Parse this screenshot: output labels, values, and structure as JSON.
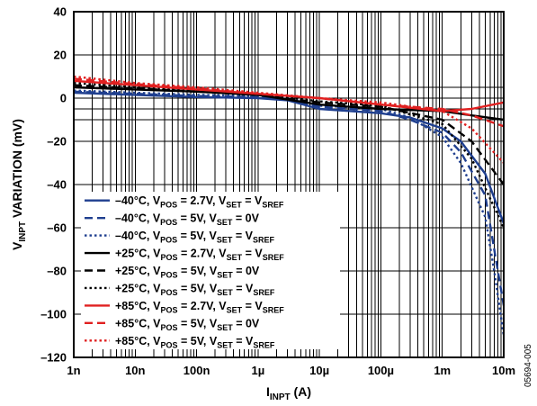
{
  "chart_data": {
    "type": "line",
    "title": "",
    "xlabel": {
      "main": "I",
      "sub": "INPT",
      "suffix": " (A)"
    },
    "ylabel": {
      "main": "V",
      "sub": "INPT",
      "suffix": " VARIATION (mV)"
    },
    "x_scale": "log",
    "xlim": [
      1e-09,
      0.01
    ],
    "ylim": [
      -120,
      40
    ],
    "x_tick_values": [
      1e-09,
      1e-08,
      1e-07,
      1e-06,
      1e-05,
      0.0001,
      0.001,
      0.01
    ],
    "x_tick_labels": [
      "1n",
      "10n",
      "100n",
      "1µ",
      "10µ",
      "100µ",
      "1m",
      "10m"
    ],
    "y_tick_values": [
      40,
      20,
      0,
      -20,
      -40,
      -60,
      -80,
      -100,
      -120
    ],
    "y_tick_labels": [
      "40",
      "20",
      "0",
      "–20",
      "–40",
      "–60",
      "–80",
      "–100",
      "–120"
    ],
    "grid": true,
    "legend_position": "lower-left",
    "figure_id": "05694-005",
    "series": [
      {
        "legend": [
          "–40°C, V",
          "POS",
          " = 2.7V, V",
          "SET",
          " = V",
          "SREF",
          ""
        ],
        "color": "#1f3f8f",
        "dash": "solid",
        "x": [
          1e-09,
          1e-08,
          1e-07,
          1e-06,
          3e-06,
          1e-05,
          0.0001,
          0.0003,
          0.001,
          0.002,
          0.005,
          0.01
        ],
        "y": [
          2.5,
          1.5,
          0.5,
          0,
          -1,
          -5,
          -7,
          -9,
          -14,
          -20,
          -35,
          -58
        ]
      },
      {
        "legend": [
          "–40°C, V",
          "POS",
          " = 5V, V",
          "SET",
          " = 0V",
          "",
          ""
        ],
        "color": "#1f3f8f",
        "dash": "dash",
        "x": [
          1e-09,
          1e-08,
          1e-07,
          1e-06,
          3e-06,
          1e-05,
          0.0001,
          0.0003,
          0.001,
          0.002,
          0.005,
          0.007,
          0.01
        ],
        "y": [
          3,
          2,
          1,
          0.5,
          -0.5,
          -4,
          -6,
          -10,
          -16,
          -25,
          -45,
          -70,
          -96
        ]
      },
      {
        "legend": [
          "–40°C, V",
          "POS",
          " = 5V, V",
          "SET",
          " = V",
          "SREF",
          ""
        ],
        "color": "#1f3f8f",
        "dash": "dot",
        "x": [
          1e-09,
          1e-08,
          1e-07,
          1e-06,
          3e-06,
          1e-05,
          0.0001,
          0.0003,
          0.001,
          0.002,
          0.005,
          0.007,
          0.01
        ],
        "y": [
          3.5,
          2.5,
          1.5,
          1,
          0,
          -3.5,
          -5,
          -9,
          -18,
          -30,
          -55,
          -80,
          -110
        ]
      },
      {
        "legend": [
          "+25°C, V",
          "POS",
          " = 2.7V, V",
          "SET",
          " = V",
          "SREF",
          ""
        ],
        "color": "#000000",
        "dash": "solid",
        "x": [
          1e-09,
          1e-08,
          1e-07,
          1e-06,
          1e-05,
          0.0001,
          0.001,
          0.003,
          0.01
        ],
        "y": [
          5,
          4,
          3,
          1.5,
          -3,
          -5,
          -6,
          -8,
          -10
        ]
      },
      {
        "legend": [
          "+25°C, V",
          "POS",
          " = 5V, V",
          "SET",
          " = 0V",
          "",
          ""
        ],
        "color": "#000000",
        "dash": "dash",
        "x": [
          1e-09,
          1e-08,
          1e-07,
          1e-06,
          1e-05,
          0.0001,
          0.001,
          0.003,
          0.01
        ],
        "y": [
          6,
          4.5,
          3,
          1.5,
          -2,
          -4,
          -10,
          -20,
          -40
        ]
      },
      {
        "legend": [
          "+25°C, V",
          "POS",
          " = 5V, V",
          "SET",
          " = V",
          "SREF",
          ""
        ],
        "color": "#000000",
        "dash": "dot",
        "x": [
          1e-09,
          1e-08,
          1e-07,
          1e-06,
          1e-05,
          0.0001,
          0.001,
          0.003,
          0.01
        ],
        "y": [
          7,
          5,
          3.5,
          2,
          -1.5,
          -3.5,
          -12,
          -28,
          -60
        ]
      },
      {
        "legend": [
          "+85°C, V",
          "POS",
          " = 2.7V, V",
          "SET",
          " = V",
          "SREF",
          ""
        ],
        "color": "#e02020",
        "dash": "solid",
        "x": [
          1e-09,
          1e-08,
          1e-07,
          1e-06,
          1e-05,
          0.0001,
          0.001,
          0.003,
          0.01
        ],
        "y": [
          8,
          6,
          4,
          2,
          0,
          -3,
          -6,
          -5,
          -2
        ]
      },
      {
        "legend": [
          "+85°C, V",
          "POS",
          " = 5V, V",
          "SET",
          " = 0V",
          "",
          ""
        ],
        "color": "#e02020",
        "dash": "dash",
        "x": [
          1e-09,
          1e-08,
          1e-07,
          1e-06,
          1e-05,
          0.0001,
          0.001,
          0.003,
          0.01
        ],
        "y": [
          9,
          6.5,
          4.5,
          2,
          0,
          -3,
          -5,
          -8,
          -13
        ]
      },
      {
        "legend": [
          "+85°C, V",
          "POS",
          " = 5V, V",
          "SET",
          " = V",
          "SREF",
          ""
        ],
        "color": "#e02020",
        "dash": "dot",
        "x": [
          1e-09,
          1e-08,
          1e-07,
          1e-06,
          1e-05,
          0.0001,
          0.001,
          0.003,
          0.01
        ],
        "y": [
          10,
          7,
          5,
          2.5,
          0,
          -2,
          -6,
          -14,
          -30
        ]
      }
    ]
  }
}
